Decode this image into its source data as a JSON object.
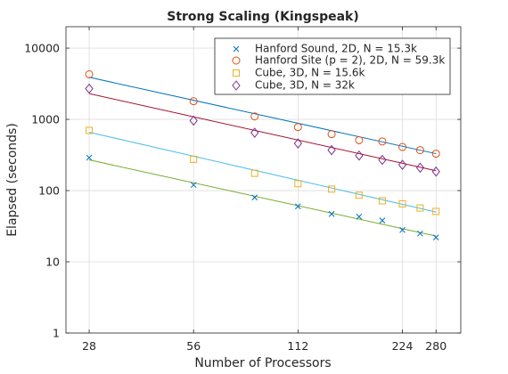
{
  "chart_data": {
    "type": "scatter",
    "title": "Strong Scaling (Kingspeak)",
    "xlabel": "Number of Processors",
    "ylabel": "Elapsed (seconds)",
    "xscale": "log",
    "yscale": "log",
    "xlim": [
      24,
      330
    ],
    "ylim": [
      1,
      20000
    ],
    "xticks": [
      28,
      56,
      112,
      224,
      280
    ],
    "xtick_labels": [
      "28",
      "56",
      "112",
      "224",
      "280"
    ],
    "yticks": [
      1,
      10,
      100,
      1000,
      10000
    ],
    "ytick_labels": [
      "1",
      "10",
      "100",
      "1000",
      "10000"
    ],
    "grid": true,
    "legend_position": "top-right",
    "series": [
      {
        "name": "Hanford Sound, 2D, N = 15.3k",
        "marker": "x",
        "color": "#0072BD",
        "x": [
          28,
          56,
          84,
          112,
          140,
          168,
          196,
          224,
          252,
          280
        ],
        "y": [
          290,
          120,
          80,
          60,
          47,
          43,
          38,
          28,
          25,
          22
        ],
        "fit": [
          [
            28,
            3900
          ],
          [
            280,
            330
          ]
        ],
        "fit_color": "#0072BD"
      },
      {
        "name": "Hanford Site (p = 2), 2D, N = 59.3k",
        "marker": "o",
        "color": "#D95319",
        "x": [
          28,
          56,
          84,
          112,
          140,
          168,
          196,
          224,
          252,
          280
        ],
        "y": [
          4300,
          1800,
          1100,
          780,
          620,
          510,
          490,
          410,
          370,
          330
        ],
        "fit": [
          [
            28,
            2300
          ],
          [
            280,
            190
          ]
        ],
        "fit_color": "#A2142F"
      },
      {
        "name": "Cube, 3D, N = 15.6k",
        "marker": "s",
        "color": "#EDB120",
        "x": [
          28,
          56,
          84,
          112,
          140,
          168,
          196,
          224,
          252,
          280
        ],
        "y": [
          700,
          275,
          175,
          125,
          105,
          86,
          72,
          65,
          57,
          51
        ],
        "fit": [
          [
            28,
            660
          ],
          [
            280,
            50
          ]
        ],
        "fit_color": "#4DBEEE"
      },
      {
        "name": "Cube, 3D, N = 32k",
        "marker": "d",
        "color": "#7E2F8E",
        "x": [
          28,
          56,
          84,
          112,
          140,
          168,
          196,
          224,
          252,
          280
        ],
        "y": [
          2700,
          960,
          650,
          460,
          370,
          310,
          270,
          230,
          210,
          185
        ],
        "fit": [
          [
            28,
            270
          ],
          [
            280,
            23
          ]
        ],
        "fit_color": "#77AC30"
      }
    ]
  }
}
